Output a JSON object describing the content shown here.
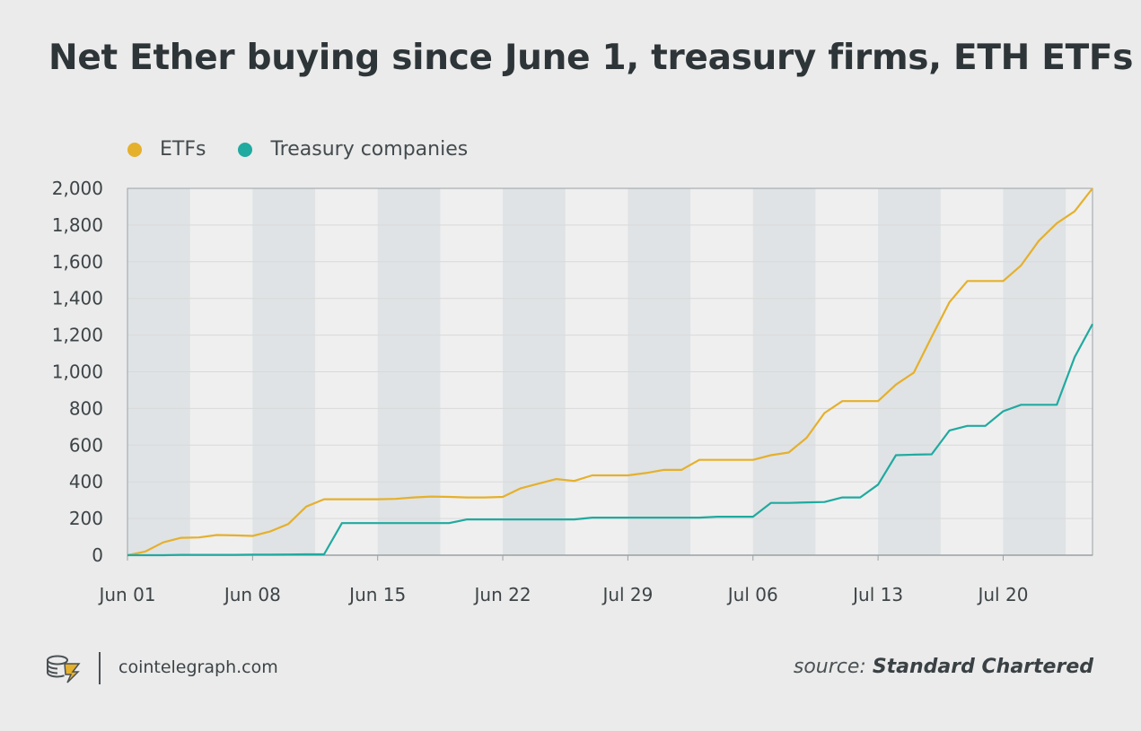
{
  "title": "Net Ether buying since June 1, treasury firms, ETH ETFs",
  "footer": {
    "site": "cointelegraph.com",
    "source_prefix": "source:",
    "source_name": "Standard Chartered"
  },
  "colors": {
    "etf": "#e5b02c",
    "treasury": "#20aaa0",
    "band": "#dfe3e5",
    "plot_bg": "#efefef",
    "grid": "#d9d9d9",
    "axis": "#9aa1a4"
  },
  "chart_data": {
    "type": "line",
    "title": "Net Ether buying since June 1, treasury firms, ETH ETFs",
    "xlabel": "",
    "ylabel": "",
    "x_ticks": [
      "Jun 01",
      "Jun 08",
      "Jun 15",
      "Jun 22",
      "Jul 29",
      "Jul 06",
      "Jul 13",
      "Jul 20"
    ],
    "y_ticks": [
      "0",
      "200",
      "400",
      "600",
      "800",
      "1,000",
      "1,200",
      "1,400",
      "1,600",
      "1,800",
      "2,000"
    ],
    "ylim": [
      0,
      2000
    ],
    "x_range_days": [
      0,
      54
    ],
    "weekend_bands_start_day": [
      0,
      7,
      14,
      21,
      28,
      35,
      42,
      49
    ],
    "grid": true,
    "legend_position": "top-left",
    "series": [
      {
        "name": "ETFs",
        "color": "#e5b02c",
        "points": [
          [
            0,
            0
          ],
          [
            1,
            20
          ],
          [
            2,
            70
          ],
          [
            3,
            95
          ],
          [
            4,
            97
          ],
          [
            5,
            110
          ],
          [
            6,
            108
          ],
          [
            7,
            105
          ],
          [
            8,
            130
          ],
          [
            9,
            170
          ],
          [
            10,
            265
          ],
          [
            11,
            305
          ],
          [
            12,
            305
          ],
          [
            13,
            305
          ],
          [
            14,
            305
          ],
          [
            15,
            307
          ],
          [
            16,
            315
          ],
          [
            17,
            320
          ],
          [
            18,
            318
          ],
          [
            19,
            315
          ],
          [
            20,
            315
          ],
          [
            21,
            318
          ],
          [
            22,
            365
          ],
          [
            23,
            390
          ],
          [
            24,
            415
          ],
          [
            25,
            405
          ],
          [
            26,
            435
          ],
          [
            27,
            435
          ],
          [
            28,
            435
          ],
          [
            29,
            448
          ],
          [
            30,
            465
          ],
          [
            31,
            465
          ],
          [
            32,
            520
          ],
          [
            33,
            520
          ],
          [
            34,
            520
          ],
          [
            35,
            520
          ],
          [
            36,
            545
          ],
          [
            37,
            560
          ],
          [
            38,
            640
          ],
          [
            39,
            775
          ],
          [
            40,
            840
          ],
          [
            41,
            840
          ],
          [
            42,
            840
          ],
          [
            43,
            930
          ],
          [
            44,
            995
          ],
          [
            45,
            1190
          ],
          [
            46,
            1380
          ],
          [
            47,
            1495
          ],
          [
            48,
            1495
          ],
          [
            49,
            1495
          ],
          [
            50,
            1580
          ],
          [
            51,
            1715
          ],
          [
            52,
            1810
          ],
          [
            53,
            1875
          ],
          [
            54,
            2000
          ]
        ]
      },
      {
        "name": "Treasury companies",
        "color": "#20aaa0",
        "points": [
          [
            0,
            0
          ],
          [
            1,
            0
          ],
          [
            2,
            0
          ],
          [
            3,
            2
          ],
          [
            4,
            2
          ],
          [
            5,
            2
          ],
          [
            6,
            2
          ],
          [
            7,
            3
          ],
          [
            8,
            3
          ],
          [
            9,
            4
          ],
          [
            10,
            5
          ],
          [
            11,
            5
          ],
          [
            12,
            175
          ],
          [
            13,
            175
          ],
          [
            14,
            175
          ],
          [
            15,
            175
          ],
          [
            16,
            175
          ],
          [
            17,
            175
          ],
          [
            18,
            175
          ],
          [
            19,
            195
          ],
          [
            20,
            195
          ],
          [
            21,
            195
          ],
          [
            22,
            195
          ],
          [
            23,
            195
          ],
          [
            24,
            195
          ],
          [
            25,
            195
          ],
          [
            26,
            205
          ],
          [
            27,
            205
          ],
          [
            28,
            205
          ],
          [
            29,
            205
          ],
          [
            30,
            205
          ],
          [
            31,
            205
          ],
          [
            32,
            205
          ],
          [
            33,
            210
          ],
          [
            34,
            210
          ],
          [
            35,
            210
          ],
          [
            36,
            285
          ],
          [
            37,
            285
          ],
          [
            38,
            288
          ],
          [
            39,
            290
          ],
          [
            40,
            315
          ],
          [
            41,
            315
          ],
          [
            42,
            385
          ],
          [
            43,
            545
          ],
          [
            44,
            548
          ],
          [
            45,
            550
          ],
          [
            46,
            680
          ],
          [
            47,
            705
          ],
          [
            48,
            705
          ],
          [
            49,
            785
          ],
          [
            50,
            820
          ],
          [
            51,
            820
          ],
          [
            52,
            820
          ],
          [
            53,
            1080
          ],
          [
            54,
            1260
          ]
        ]
      }
    ]
  }
}
